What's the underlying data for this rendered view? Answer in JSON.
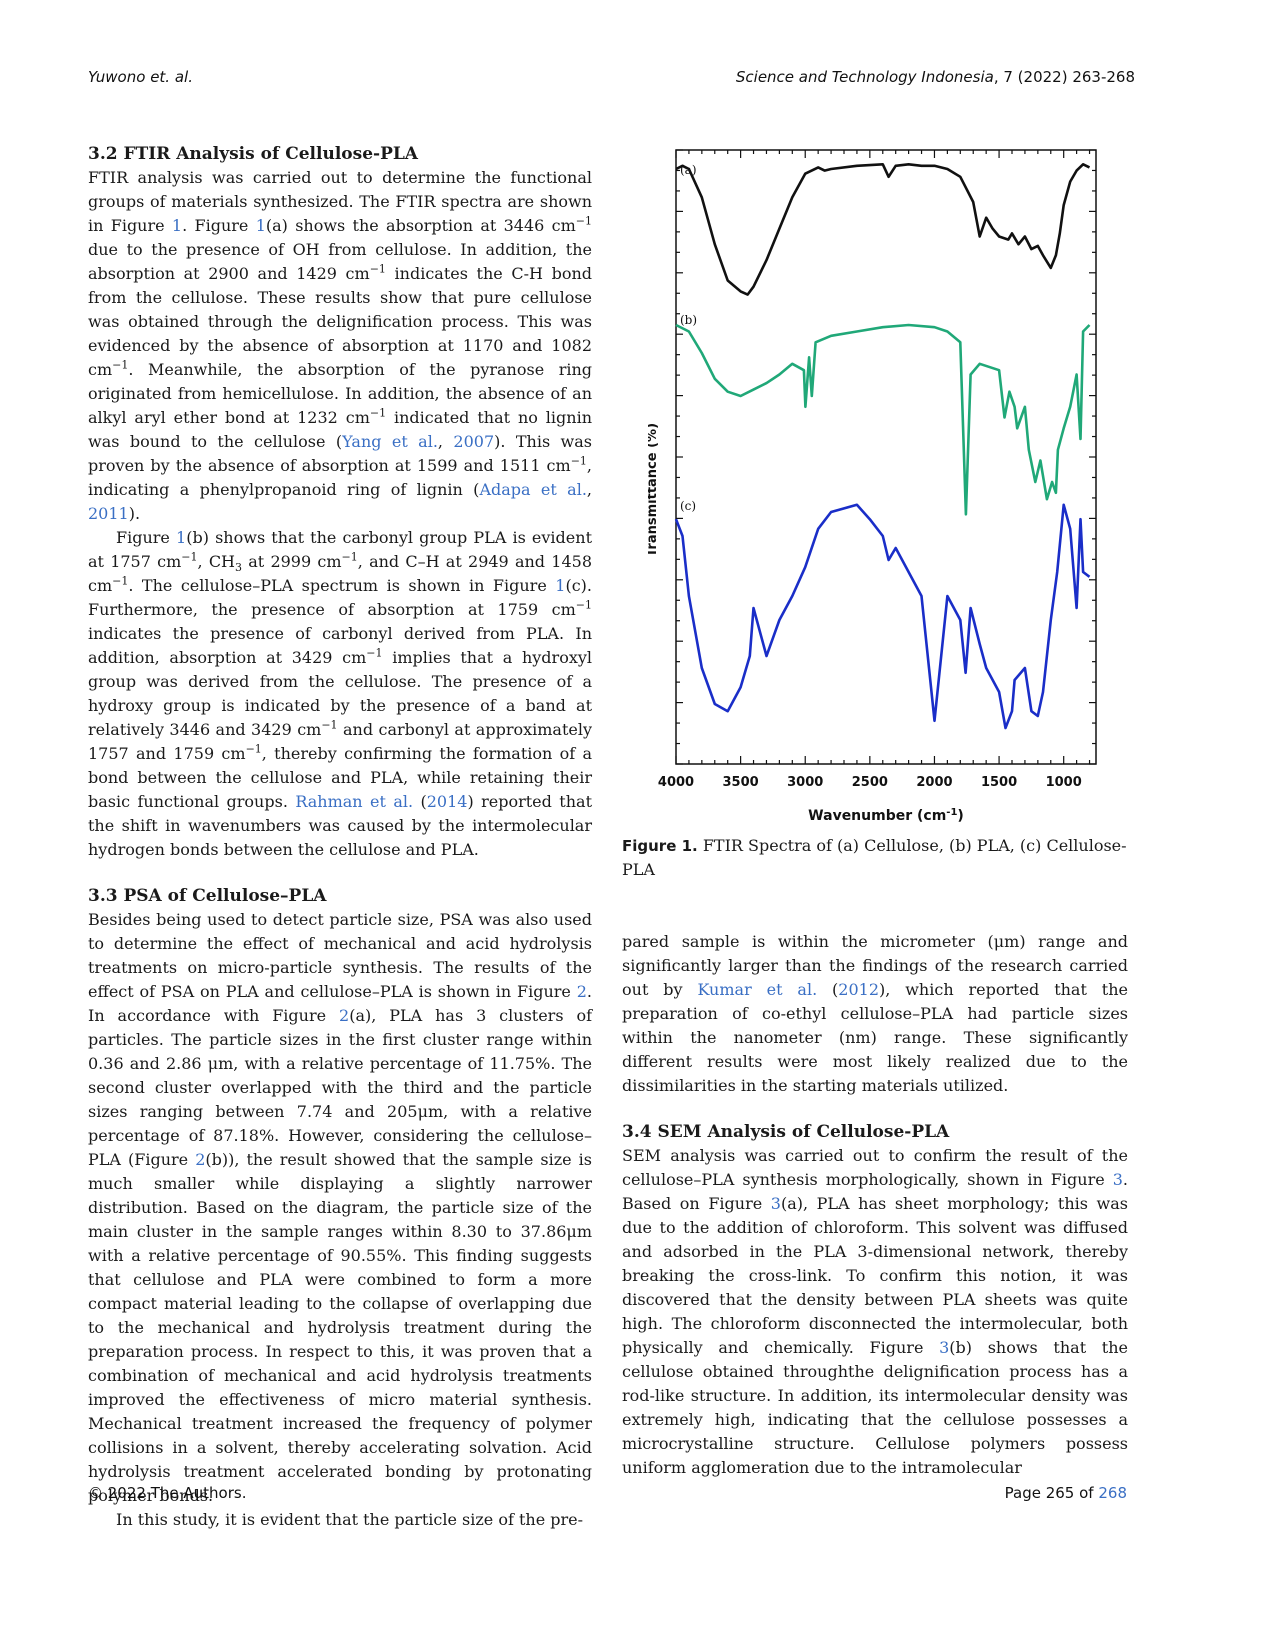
{
  "header": {
    "left": "Yuwono et. al.",
    "right_journal": "Science and Technology Indonesia",
    "right_rest": ", 7 (2022) 263-268"
  },
  "sec32": {
    "title": "3.2  FTIR Analysis of Cellulose-PLA",
    "p1a": "FTIR analysis was carried out to determine the functional groups of materials synthesized. The FTIR spectra are shown in Figure ",
    "fig1": "1",
    "p1b": ". Figure ",
    "p1c": "(a) shows the absorption at 3446 cm",
    "sup": "−1",
    "p1d": " due to the presence of OH from cellulose. In addition, the absorption at 2900 and 1429 cm",
    "p1e": " indicates the C-H bond from the cellulose. These results show that pure cellulose was obtained through the delignification process. This was evidenced by the absence of absorption at 1170 and 1082 cm",
    "p1f": ". Meanwhile, the absorption of the pyranose ring originated from hemicellulose. In addition, the absence of an alkyl aryl ether bond at 1232 cm",
    "p1g": " indicated that no lignin was bound to the cellulose (",
    "ref_yang": "Yang et al.",
    "ref_yang_sep": ", ",
    "ref_yang_year": "2007",
    "p1h": "). This was proven by the absence of absorption at 1599 and 1511 cm",
    "p1i": ", indicating a phenylpropanoid ring of lignin (",
    "ref_adapa": "Adapa et al.",
    "ref_adapa_year": "2011",
    "p1j": ").",
    "p2a": "Figure ",
    "p2b": "(b) shows that the carbonyl group PLA is evident at 1757 cm",
    "p2c": ", CH",
    "p2c_sub": "3",
    "p2d": " at 2999 cm",
    "p2e": ", and C–H at 2949 and 1458 cm",
    "p2f": ". The cellulose–PLA spectrum is shown in Figure ",
    "p2g": "(c). Furthermore, the presence of absorption at 1759 cm",
    "p2h": " indicates the presence of carbonyl derived from PLA. In addition, absorption at 3429 cm",
    "p2i": " implies that a hydroxyl group was derived from the cellulose. The presence of a hydroxy group is indicated by the presence of a band at relatively 3446 and 3429 cm",
    "p2j": " and carbonyl at approximately 1757 and 1759 cm",
    "p2k": ", thereby confirming the formation of a bond between the cellulose and PLA, while retaining their basic functional groups. ",
    "ref_rahman": "Rahman et al.",
    "ref_rahman_open": " (",
    "ref_rahman_year": "2014",
    "p2l": ") reported that the shift in wavenumbers was caused by the intermolecular hydrogen bonds between the cellulose and PLA."
  },
  "sec33": {
    "title": "3.3  PSA of Cellulose–PLA",
    "p1a": "Besides being used to detect particle size, PSA was also used to determine the effect of mechanical and acid hydrolysis treatments on micro-particle synthesis. The results of the effect of PSA on PLA and cellulose–PLA is shown in Figure ",
    "fig2": "2",
    "p1b": ". In accordance with Figure ",
    "p1c": "(a), PLA has 3 clusters of particles. The particle sizes in the first cluster range within 0.36 and 2.86 μm, with a relative percentage of 11.75%. The second cluster overlapped with the third and the particle sizes ranging between 7.74 and 205μm, with a relative percentage of 87.18%. However, considering the cellulose–PLA (Figure ",
    "p1d": "(b)), the result showed that the sample size is much smaller while displaying a slightly narrower distribution. Based on the diagram, the particle size of the main cluster in the sample ranges within 8.30 to 37.86μm with a relative percentage of 90.55%. This finding suggests that cellulose and PLA were combined to form a more compact material leading to the collapse of overlapping due to the mechanical and hydrolysis treatment during the preparation process. In respect to this, it was proven that a combination of mechanical and acid hydrolysis treatments improved the effectiveness of micro material synthesis. Mechanical treatment increased the frequency of polymer collisions in a solvent, thereby accelerating solvation. Acid hydrolysis treatment accelerated bonding by protonating polymer bonds.",
    "p2": "In this study, it is evident that the particle size of the pre-",
    "cont_a": "pared sample is within the micrometer (μm) range and significantly larger than the findings of the research carried out by ",
    "ref_kumar": "Kumar et al.",
    "ref_kumar_open": " (",
    "ref_kumar_year": "2012",
    "cont_b": "), which reported that the preparation of co-ethyl cellulose–PLA had particle sizes within the nanometer (nm) range. These significantly different results were most likely realized due to the dissimilarities in the starting materials utilized."
  },
  "sec34": {
    "title": "3.4  SEM Analysis of Cellulose-PLA",
    "p1a": "SEM analysis was carried out to confirm the result of the cellulose–PLA synthesis morphologically, shown in Figure ",
    "fig3": "3",
    "p1b": ". Based on Figure ",
    "p1c": "(a), PLA has sheet morphology; this was due to the addition of chloroform. This solvent was diffused and adsorbed in the PLA 3-dimensional network, thereby breaking the cross-link. To confirm this notion, it was discovered that the density between PLA sheets was quite high. The chloroform disconnected the intermolecular, both physically and chemically. Figure ",
    "p1d": "(b) shows that the cellulose obtained throughthe delignification process has a rod-like structure. In addition, its intermolecular density was extremely high, indicating that the cellulose possesses a microcrystalline structure. Cellulose polymers possess uniform agglomeration due to the intramolecular"
  },
  "figure1": {
    "caption_label": "Figure 1.",
    "caption_text": " FTIR Spectra of (a) Cellulose, (b) PLA, (c) Cellulose-PLA",
    "ylabel": "Transmittance (%)",
    "xlabel": "Wavenumber (cm",
    "xlabel_sup": "-1",
    "xlabel_end": ")",
    "panel_labels": [
      "(a)",
      "(b)",
      "(c)"
    ],
    "ticks": [
      "4000",
      "3500",
      "3000",
      "2500",
      "2000",
      "1500",
      "1000"
    ]
  },
  "chart_data": {
    "type": "line",
    "title": "",
    "xlabel": "Wavenumber (cm-1)",
    "ylabel": "Transmittance (%)",
    "xlim": [
      4000,
      750
    ],
    "x_reversed": true,
    "grid": false,
    "series": [
      {
        "name": "(a)",
        "color": "#111111",
        "x": [
          4000,
          3950,
          3900,
          3800,
          3700,
          3600,
          3500,
          3446,
          3400,
          3300,
          3200,
          3100,
          3000,
          2900,
          2850,
          2800,
          2600,
          2400,
          2355,
          2300,
          2200,
          2100,
          2000,
          1900,
          1800,
          1700,
          1650,
          1600,
          1550,
          1500,
          1429,
          1400,
          1350,
          1300,
          1250,
          1200,
          1160,
          1100,
          1060,
          1030,
          1000,
          950,
          900,
          850,
          800
        ],
        "y": [
          0.93,
          0.95,
          0.93,
          0.75,
          0.45,
          0.22,
          0.15,
          0.13,
          0.18,
          0.35,
          0.55,
          0.75,
          0.9,
          0.94,
          0.92,
          0.93,
          0.95,
          0.96,
          0.88,
          0.95,
          0.96,
          0.95,
          0.95,
          0.93,
          0.88,
          0.72,
          0.5,
          0.62,
          0.55,
          0.5,
          0.48,
          0.52,
          0.45,
          0.5,
          0.42,
          0.44,
          0.38,
          0.3,
          0.38,
          0.52,
          0.7,
          0.85,
          0.92,
          0.96,
          0.94
        ]
      },
      {
        "name": "(b)",
        "color": "#20a878",
        "x": [
          4000,
          3900,
          3800,
          3700,
          3600,
          3500,
          3400,
          3300,
          3200,
          3100,
          3010,
          2999,
          2970,
          2949,
          2920,
          2800,
          2600,
          2400,
          2200,
          2000,
          1900,
          1800,
          1757,
          1720,
          1650,
          1500,
          1458,
          1420,
          1380,
          1360,
          1300,
          1270,
          1220,
          1180,
          1130,
          1090,
          1060,
          1045,
          1000,
          950,
          900,
          870,
          850,
          800
        ],
        "y": [
          0.93,
          0.9,
          0.8,
          0.68,
          0.62,
          0.6,
          0.63,
          0.66,
          0.7,
          0.75,
          0.72,
          0.55,
          0.78,
          0.6,
          0.85,
          0.88,
          0.9,
          0.92,
          0.93,
          0.92,
          0.9,
          0.85,
          0.05,
          0.7,
          0.75,
          0.72,
          0.5,
          0.62,
          0.55,
          0.45,
          0.55,
          0.35,
          0.2,
          0.3,
          0.12,
          0.2,
          0.15,
          0.35,
          0.45,
          0.55,
          0.7,
          0.4,
          0.9,
          0.93
        ]
      },
      {
        "name": "(c)",
        "color": "#1a2ec8",
        "x": [
          4000,
          3950,
          3900,
          3800,
          3700,
          3600,
          3500,
          3429,
          3400,
          3300,
          3200,
          3100,
          3000,
          2900,
          2800,
          2600,
          2500,
          2400,
          2355,
          2300,
          2200,
          2100,
          2000,
          1900,
          1800,
          1759,
          1720,
          1650,
          1600,
          1500,
          1450,
          1400,
          1380,
          1300,
          1250,
          1200,
          1160,
          1100,
          1050,
          1000,
          950,
          900,
          870,
          850,
          800
        ],
        "y": [
          0.92,
          0.85,
          0.6,
          0.3,
          0.15,
          0.12,
          0.22,
          0.35,
          0.55,
          0.35,
          0.5,
          0.6,
          0.72,
          0.88,
          0.95,
          0.98,
          0.92,
          0.85,
          0.75,
          0.8,
          0.7,
          0.6,
          0.08,
          0.6,
          0.5,
          0.28,
          0.55,
          0.4,
          0.3,
          0.2,
          0.05,
          0.12,
          0.25,
          0.3,
          0.12,
          0.1,
          0.2,
          0.5,
          0.7,
          0.98,
          0.88,
          0.55,
          0.92,
          0.7,
          0.68
        ]
      }
    ]
  },
  "footer": {
    "left": "© 2022 The Authors.",
    "page_prefix": "Page 265 of ",
    "page_total": "268"
  }
}
